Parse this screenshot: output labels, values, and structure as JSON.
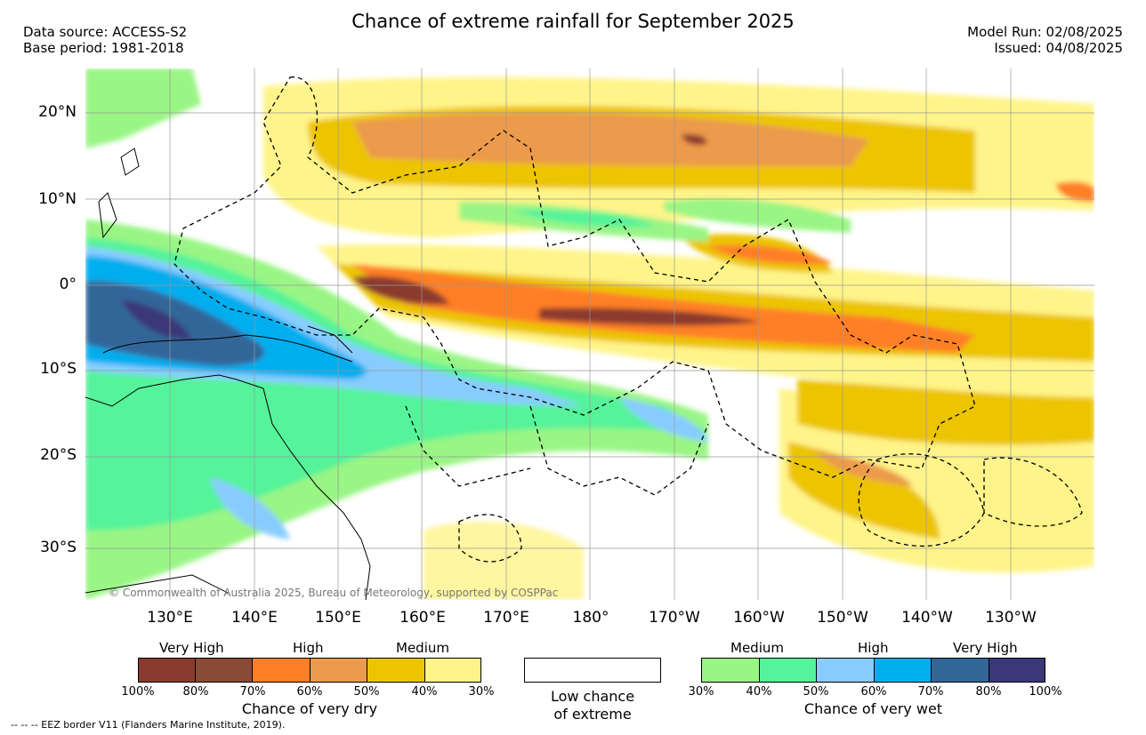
{
  "title": "Chance of extreme rainfall for September 2025",
  "header_left": [
    "Data source: ACCESS-S2",
    "Base period: 1981-2018"
  ],
  "header_right": [
    "Model Run: 02/08/2025",
    "Issued: 04/08/2025"
  ],
  "lat_labels": [
    "20°N",
    "10°N",
    "0°",
    "10°S",
    "20°S",
    "30°S"
  ],
  "lon_labels": [
    "130°E",
    "140°E",
    "150°E",
    "160°E",
    "170°E",
    "180°",
    "170°W",
    "160°W",
    "150°W",
    "140°W",
    "130°W"
  ],
  "credit": "© Commonwealth of Australia 2025, Bureau of Meteorology, supported by COSPPac",
  "dry_legend": {
    "levels": [
      "Very High",
      "High",
      "Medium"
    ],
    "colors": [
      "#8b3a2e",
      "#8b4a35",
      "#ff7f27",
      "#ec9a4c",
      "#ecc400",
      "#fff48a"
    ],
    "ticks": [
      "100%",
      "80%",
      "70%",
      "60%",
      "50%",
      "40%",
      "30%"
    ],
    "caption": "Chance of very dry"
  },
  "low_legend": {
    "caption_line1": "Low chance",
    "caption_line2": "of extreme"
  },
  "wet_legend": {
    "levels": [
      "Medium",
      "High",
      "Very High"
    ],
    "colors": [
      "#99f584",
      "#55f39a",
      "#88ccff",
      "#00aeef",
      "#336699",
      "#3b3877"
    ],
    "ticks": [
      "30%",
      "40%",
      "50%",
      "60%",
      "70%",
      "80%",
      "100%"
    ],
    "caption": "Chance of very wet"
  },
  "footnote": "-- -- -- EEZ border V11 (Flanders Marine Institute, 2019)."
}
